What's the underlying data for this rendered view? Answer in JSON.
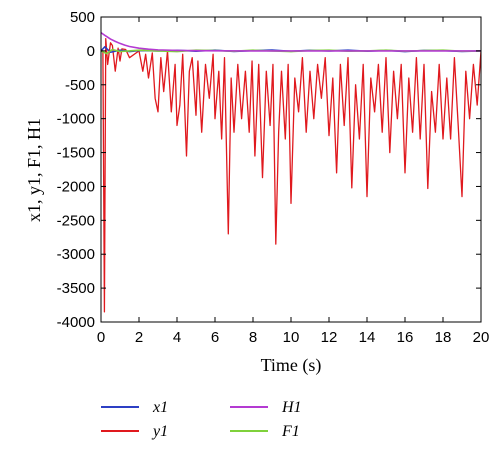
{
  "chart_data": {
    "type": "line",
    "title": "",
    "xlabel": "Time (s)",
    "ylabel": "x1, y1, F1, H1",
    "xlim": [
      0,
      20
    ],
    "ylim": [
      -4000,
      500
    ],
    "xticks": [
      "0",
      "2",
      "4",
      "6",
      "8",
      "10",
      "12",
      "14",
      "16",
      "18",
      "20"
    ],
    "yticks": [
      "500",
      "0",
      "-500",
      "-1000",
      "-1500",
      "-2000",
      "-2500",
      "-3000",
      "-3500",
      "-4000"
    ],
    "grid": false,
    "legend_position": "bottom",
    "colors": {
      "x1": "#2d3fc4",
      "y1": "#e0191e",
      "H1": "#b43ad2",
      "F1": "#7fd13b"
    },
    "series": [
      {
        "name": "x1",
        "x": [
          0,
          0.2,
          0.5,
          1,
          1.5,
          2,
          3,
          4,
          5,
          6,
          7,
          8,
          9,
          10,
          11,
          12,
          13,
          14,
          15,
          16,
          17,
          18,
          19,
          20
        ],
        "y": [
          0,
          60,
          -20,
          10,
          -10,
          5,
          0,
          8,
          -5,
          10,
          -8,
          5,
          12,
          -6,
          8,
          0,
          10,
          -5,
          8,
          -10,
          6,
          5,
          -8,
          0
        ]
      },
      {
        "name": "y1",
        "x": [
          0,
          0.1,
          0.18,
          0.25,
          0.35,
          0.5,
          0.6,
          0.75,
          0.9,
          1.0,
          1.1,
          1.3,
          1.5,
          2.0,
          2.2,
          2.35,
          2.5,
          2.7,
          2.85,
          3.0,
          3.15,
          3.3,
          3.5,
          3.7,
          3.9,
          4.0,
          4.15,
          4.3,
          4.5,
          4.65,
          4.8,
          5.0,
          5.1,
          5.3,
          5.5,
          5.7,
          5.9,
          6.0,
          6.2,
          6.35,
          6.5,
          6.7,
          6.85,
          7.0,
          7.2,
          7.4,
          7.6,
          7.8,
          7.95,
          8.1,
          8.3,
          8.5,
          8.7,
          8.9,
          9.05,
          9.2,
          9.35,
          9.5,
          9.7,
          9.85,
          10.0,
          10.2,
          10.4,
          10.6,
          10.8,
          11.0,
          11.2,
          11.4,
          11.6,
          11.8,
          12.0,
          12.2,
          12.4,
          12.6,
          12.8,
          13.0,
          13.2,
          13.4,
          13.6,
          13.8,
          14.0,
          14.2,
          14.4,
          14.6,
          14.8,
          15.0,
          15.2,
          15.4,
          15.6,
          15.8,
          16.0,
          16.2,
          16.4,
          16.6,
          16.8,
          17.0,
          17.2,
          17.4,
          17.6,
          17.8,
          18.0,
          18.2,
          18.4,
          18.6,
          18.8,
          19.0,
          19.2,
          19.4,
          19.6,
          19.8,
          20.0
        ],
        "y": [
          0,
          0,
          -3850,
          180,
          -200,
          120,
          80,
          -300,
          40,
          -150,
          30,
          20,
          -100,
          0,
          -300,
          -50,
          -400,
          -30,
          -700,
          -900,
          -100,
          -600,
          0,
          -900,
          -200,
          -1100,
          -800,
          -50,
          -1550,
          -300,
          -100,
          -950,
          -150,
          -1200,
          -200,
          -700,
          -50,
          -1000,
          -300,
          -1300,
          -100,
          -2700,
          -400,
          -1200,
          -200,
          -1000,
          -300,
          -1200,
          -150,
          -1550,
          -200,
          -1870,
          -300,
          -1100,
          -200,
          -2850,
          -1200,
          -300,
          -1300,
          -200,
          -2250,
          -400,
          -900,
          -100,
          -1200,
          -300,
          -1000,
          -200,
          -700,
          -100,
          -1250,
          -400,
          -1800,
          -200,
          -1100,
          -100,
          -2020,
          -500,
          -1300,
          -200,
          -2150,
          -400,
          -900,
          -200,
          -1200,
          -100,
          -1500,
          -300,
          -1000,
          -200,
          -1800,
          -400,
          -1200,
          -100,
          -1300,
          -200,
          -2030,
          -600,
          -1200,
          -200,
          -1300,
          -400,
          -1300,
          -100,
          -1100,
          -2150,
          -300,
          -1000,
          -200,
          -800,
          0
        ]
      },
      {
        "name": "H1",
        "x": [
          0,
          0.25,
          0.5,
          0.75,
          1,
          1.25,
          1.5,
          2,
          2.5,
          3,
          4,
          5,
          6,
          8,
          10,
          12,
          14,
          16,
          18,
          20
        ],
        "y": [
          270,
          220,
          175,
          140,
          110,
          85,
          65,
          40,
          25,
          15,
          6,
          3,
          1,
          0,
          0,
          0,
          0,
          0,
          0,
          0
        ]
      },
      {
        "name": "F1",
        "x": [
          0,
          0.3,
          0.6,
          1,
          2,
          3,
          4,
          5,
          6,
          7,
          8,
          9,
          10,
          11,
          12,
          13,
          14,
          15,
          16,
          17,
          18,
          19,
          20
        ],
        "y": [
          0,
          -40,
          20,
          -10,
          10,
          0,
          -10,
          10,
          5,
          -5,
          10,
          0,
          -10,
          5,
          10,
          -5,
          0,
          10,
          -5,
          5,
          10,
          -5,
          0
        ]
      }
    ]
  },
  "legend": [
    {
      "label": "x1",
      "color": "#2d3fc4"
    },
    {
      "label": "y1",
      "color": "#e0191e"
    },
    {
      "label": "H1",
      "color": "#b43ad2"
    },
    {
      "label": "F1",
      "color": "#7fd13b"
    }
  ]
}
